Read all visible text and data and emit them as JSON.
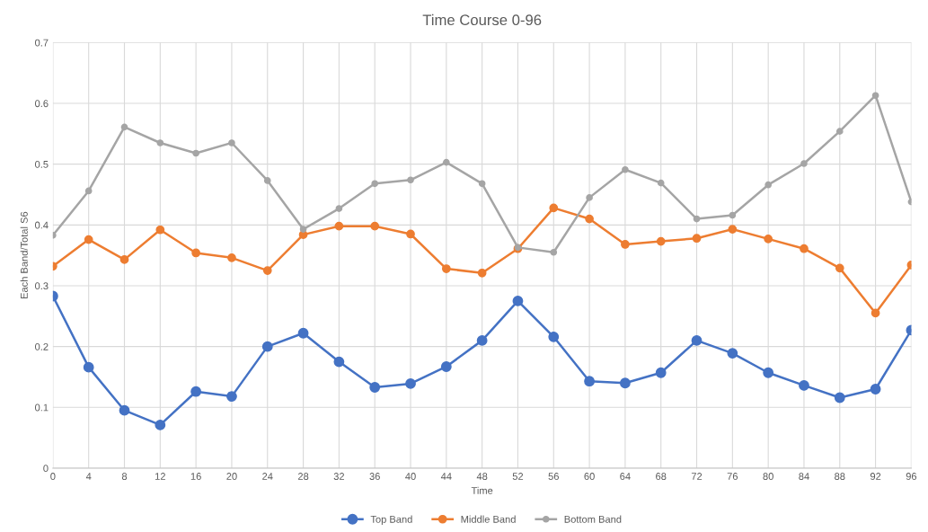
{
  "chart_data": {
    "type": "line",
    "title": "Time Course 0-96",
    "xlabel": "Time",
    "ylabel": "Each Band/Total S6",
    "categories": [
      "0",
      "4",
      "8",
      "12",
      "16",
      "20",
      "24",
      "28",
      "32",
      "36",
      "40",
      "44",
      "48",
      "52",
      "56",
      "60",
      "64",
      "68",
      "72",
      "76",
      "80",
      "84",
      "88",
      "92",
      "96"
    ],
    "series": [
      {
        "name": "Top Band",
        "color": "#4472c4",
        "values": [
          0.283,
          0.166,
          0.095,
          0.071,
          0.126,
          0.118,
          0.2,
          0.222,
          0.175,
          0.133,
          0.139,
          0.167,
          0.21,
          0.275,
          0.216,
          0.143,
          0.14,
          0.157,
          0.21,
          0.189,
          0.157,
          0.136,
          0.116,
          0.13,
          0.227
        ]
      },
      {
        "name": "Middle Band",
        "color": "#ed7d31",
        "values": [
          0.332,
          0.376,
          0.343,
          0.392,
          0.354,
          0.346,
          0.325,
          0.384,
          0.398,
          0.398,
          0.385,
          0.328,
          0.321,
          0.361,
          0.428,
          0.41,
          0.368,
          0.373,
          0.378,
          0.393,
          0.377,
          0.361,
          0.329,
          0.255,
          0.334
        ]
      },
      {
        "name": "Bottom Band",
        "color": "#a5a5a5",
        "values": [
          0.383,
          0.456,
          0.561,
          0.535,
          0.518,
          0.535,
          0.473,
          0.393,
          0.427,
          0.468,
          0.474,
          0.503,
          0.468,
          0.363,
          0.355,
          0.445,
          0.491,
          0.469,
          0.41,
          0.416,
          0.466,
          0.501,
          0.554,
          0.613,
          0.438
        ]
      }
    ],
    "ylim": [
      0,
      0.7
    ],
    "yticks": [
      0,
      0.1,
      0.2,
      0.3,
      0.4,
      0.5,
      0.6,
      0.7
    ],
    "grid": true,
    "legend": "bottom",
    "marker": "circle",
    "line_style": "solid"
  }
}
